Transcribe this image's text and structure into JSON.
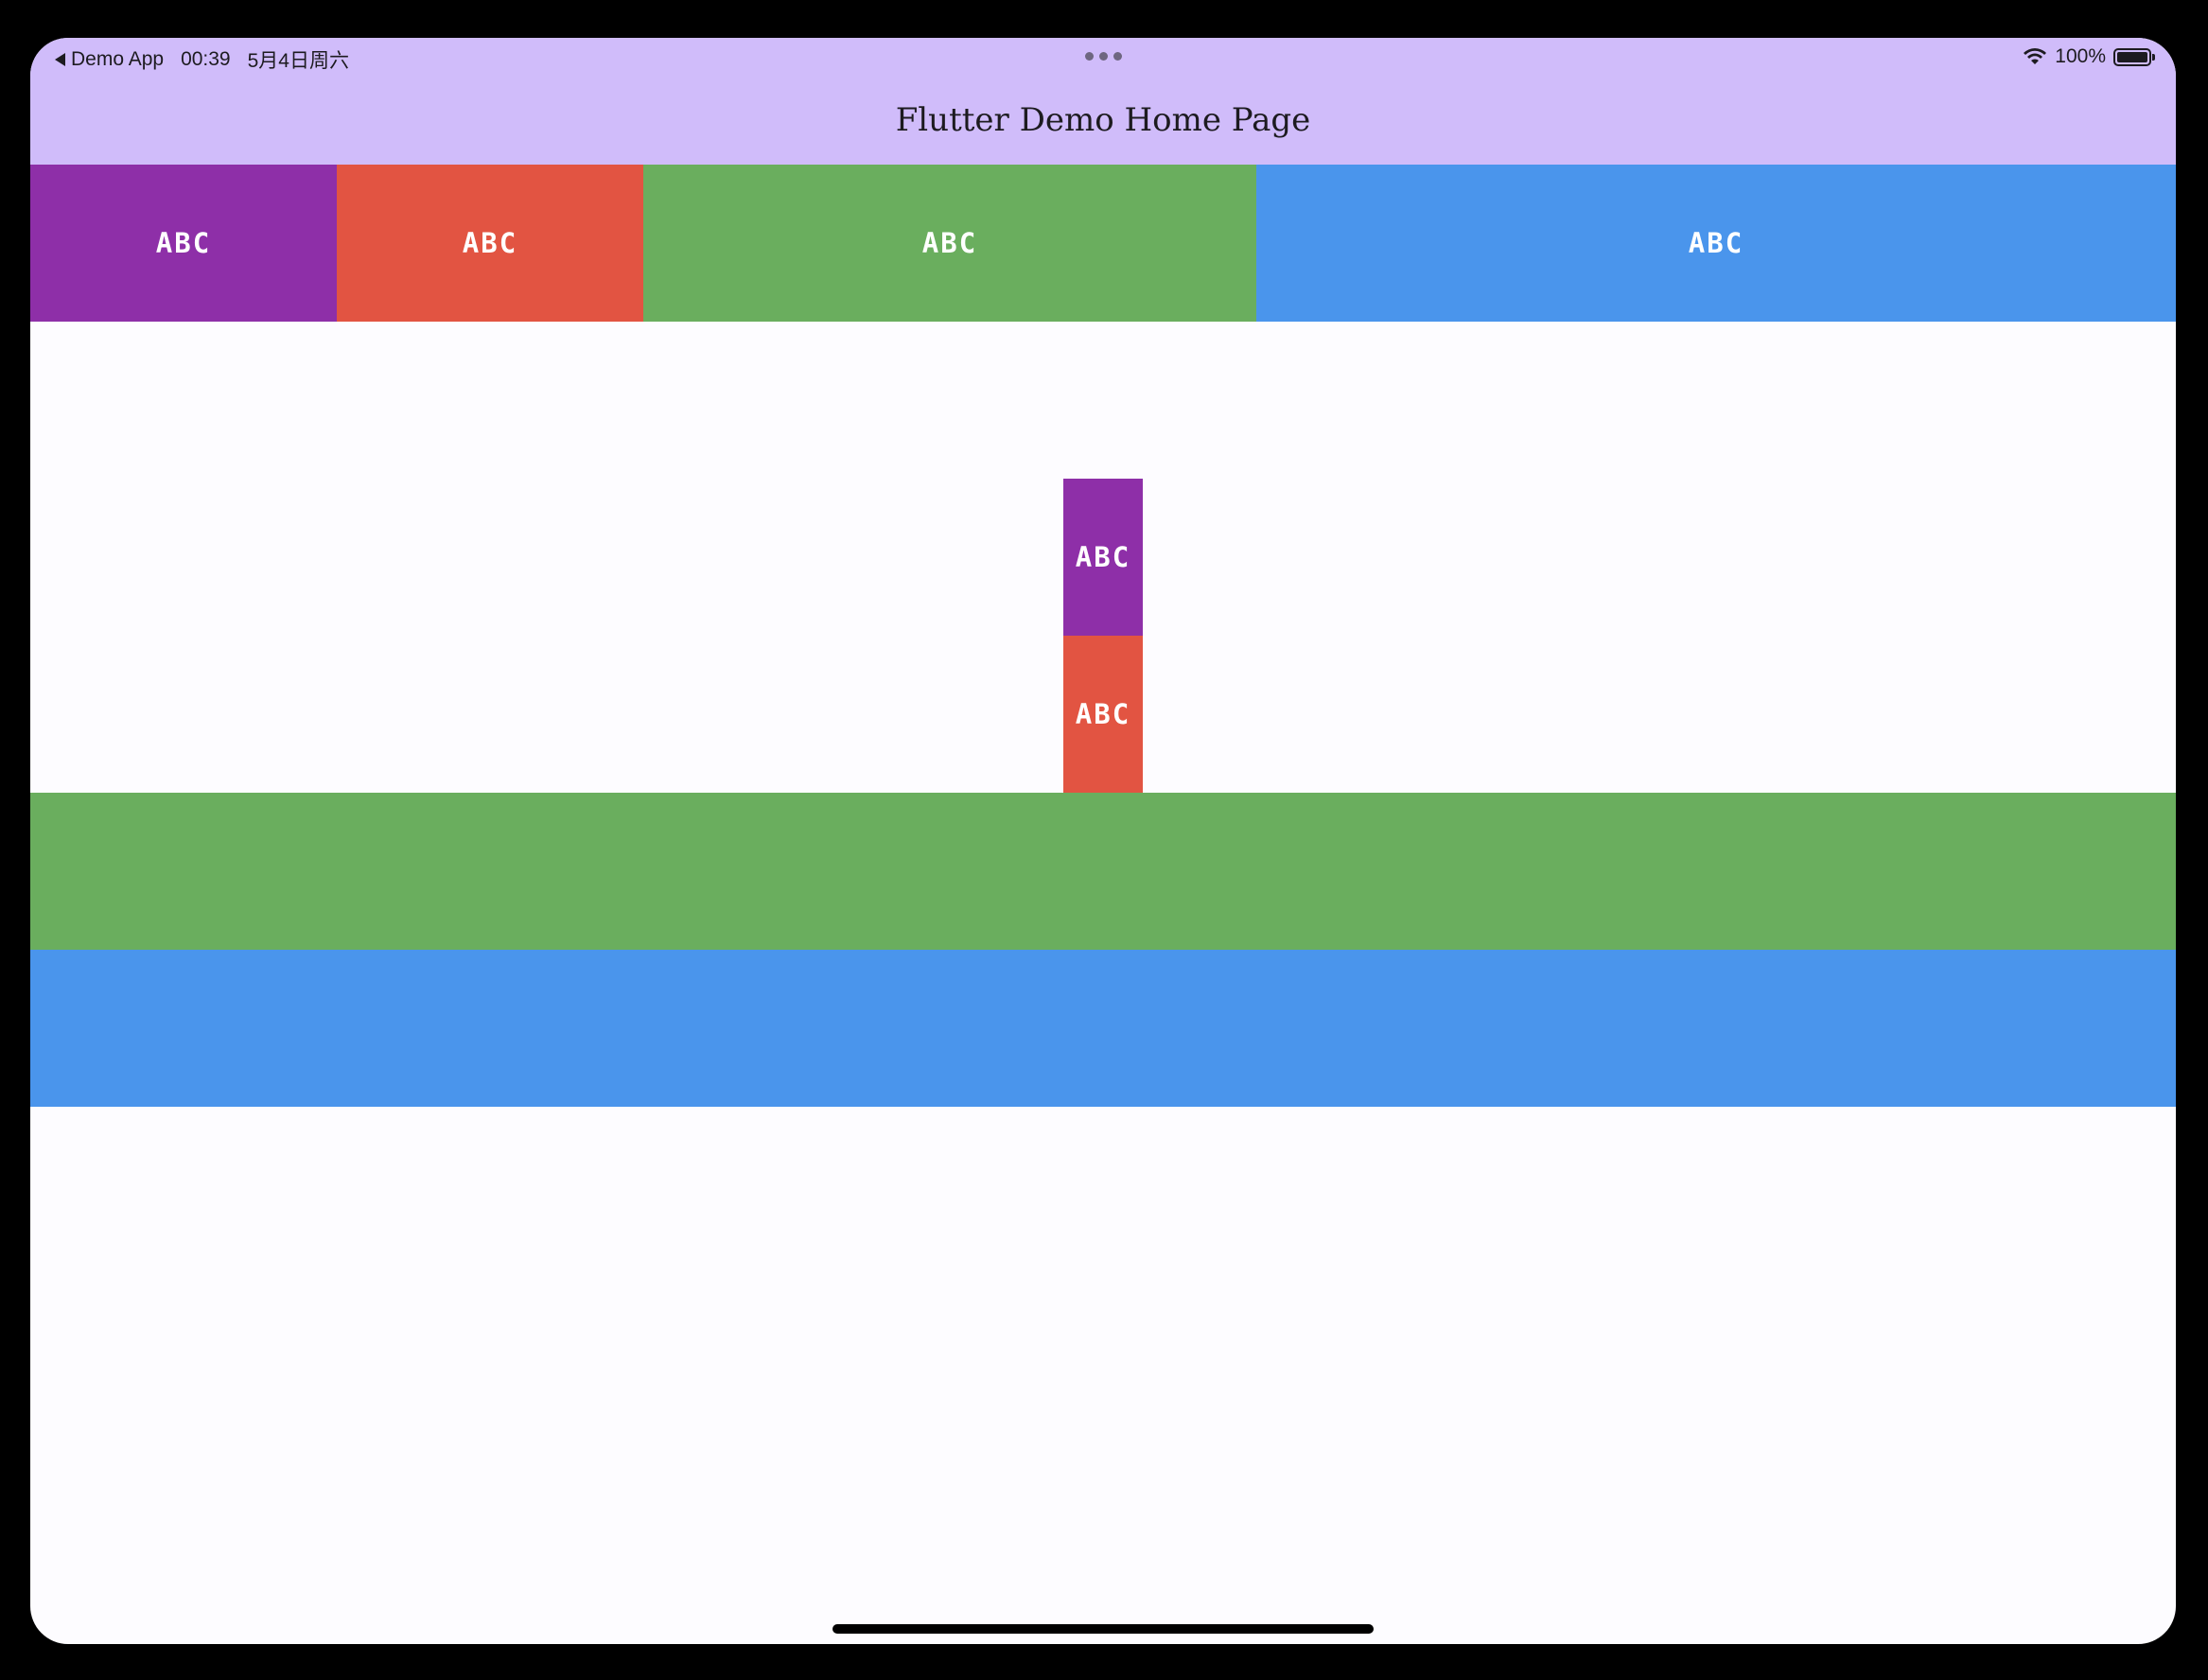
{
  "status_bar": {
    "back_app": "Demo App",
    "time": "00:39",
    "date": "5月4日周六",
    "battery": "100%"
  },
  "app_bar": {
    "title": "Flutter Demo Home Page",
    "background": "#d0bcfa"
  },
  "row_boxes": [
    {
      "label": "ABC",
      "color": "#8e2fa8",
      "flex": 1
    },
    {
      "label": "ABC",
      "color": "#e25442",
      "flex": 1
    },
    {
      "label": "ABC",
      "color": "#6aae5e",
      "flex": 2
    },
    {
      "label": "ABC",
      "color": "#4a95ec",
      "flex": 3
    }
  ],
  "column_boxes": [
    {
      "label": "ABC",
      "color": "#8e2fa8"
    },
    {
      "label": "ABC",
      "color": "#e25442"
    },
    {
      "label": "",
      "color": "#6aae5e"
    },
    {
      "label": "",
      "color": "#4a95ec"
    }
  ],
  "icons": [
    "back-arrow-icon",
    "more-dots-icon",
    "wifi-icon",
    "battery-icon"
  ]
}
